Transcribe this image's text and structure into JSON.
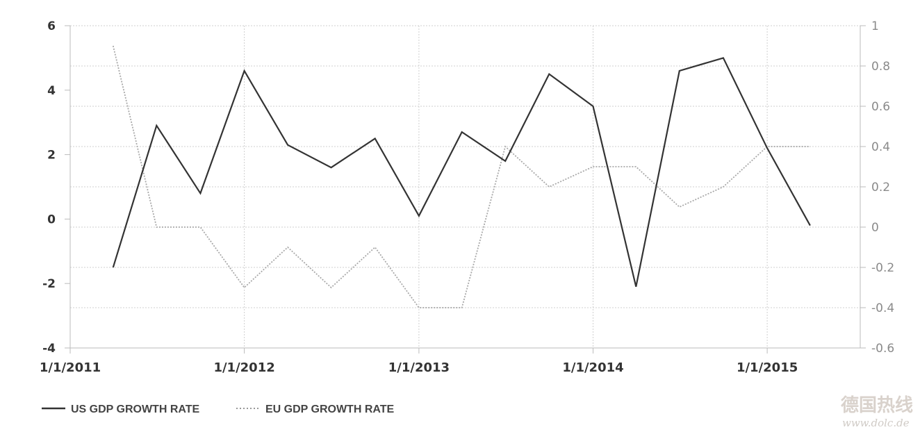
{
  "chart_data": {
    "type": "line",
    "title": "",
    "x_tick_labels": [
      "1/1/2011",
      "1/1/2012",
      "1/1/2013",
      "1/1/2014",
      "1/1/2015"
    ],
    "x": [
      "2011-04-01",
      "2011-07-01",
      "2011-10-01",
      "2012-01-01",
      "2012-04-01",
      "2012-07-01",
      "2012-10-01",
      "2013-01-01",
      "2013-04-01",
      "2013-07-01",
      "2013-10-01",
      "2014-01-01",
      "2014-04-01",
      "2014-07-01",
      "2014-10-01",
      "2015-01-01",
      "2015-04-01"
    ],
    "x_range": [
      "2011-01-01",
      "2015-07-15"
    ],
    "y_left": {
      "range": [
        -4,
        6
      ],
      "ticks": [
        "6",
        "4",
        "2",
        "0",
        "-2",
        "-4"
      ]
    },
    "y_right": {
      "range": [
        -0.6,
        1
      ],
      "ticks": [
        "1",
        "0.8",
        "0.6",
        "0.4",
        "0.2",
        "0",
        "-0.2",
        "-0.4",
        "-0.6"
      ]
    },
    "grid": true,
    "legend_placement": "bottom-left",
    "series": [
      {
        "name": "US GDP GROWTH RATE",
        "axis": "left",
        "style": "solid",
        "color": "#333333",
        "values": [
          -1.5,
          2.9,
          0.8,
          4.6,
          2.3,
          1.6,
          2.5,
          0.1,
          2.7,
          1.8,
          4.5,
          3.5,
          -2.1,
          4.6,
          5.0,
          2.2,
          -0.2
        ]
      },
      {
        "name": "EU GDP GROWTH RATE",
        "axis": "right",
        "style": "dotted",
        "color": "#a8a8a8",
        "values": [
          0.9,
          0.0,
          0.0,
          -0.3,
          -0.1,
          -0.3,
          -0.1,
          -0.4,
          -0.4,
          0.4,
          0.2,
          0.3,
          0.3,
          0.1,
          0.2,
          0.4,
          0.4
        ]
      }
    ]
  },
  "watermark": {
    "chinese": "德国热线",
    "url": "www.dolc.de"
  }
}
